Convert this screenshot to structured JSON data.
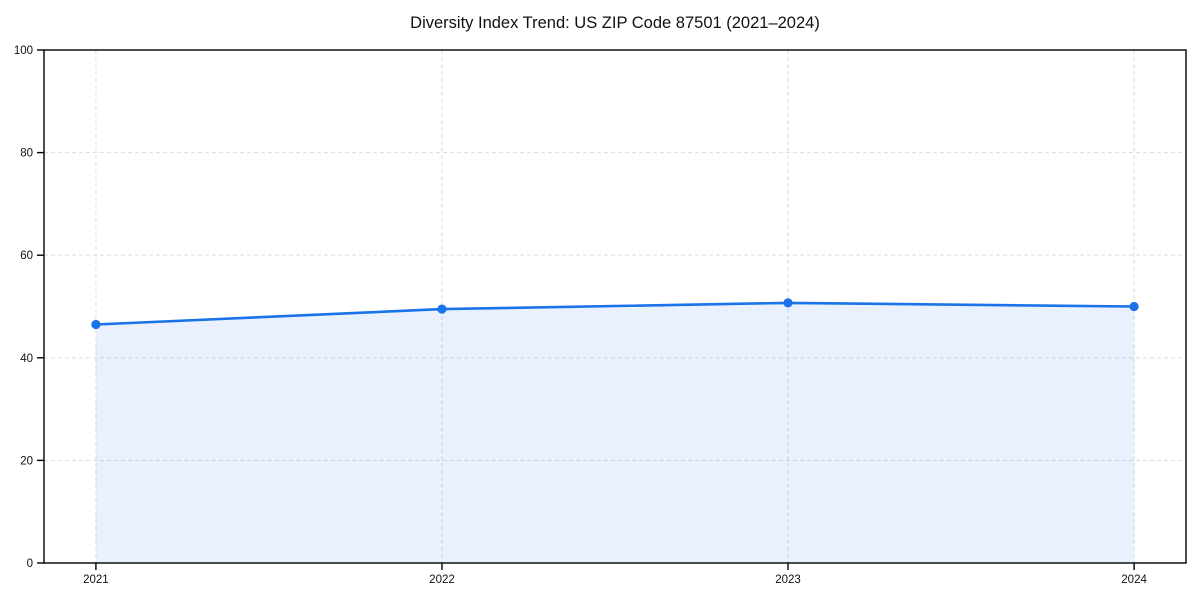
{
  "chart_data": {
    "type": "area",
    "title": "Diversity Index Trend: US ZIP Code 87501 (2021–2024)",
    "x": [
      2021,
      2022,
      2023,
      2024
    ],
    "x_tick_labels": [
      "2021",
      "2022",
      "2023",
      "2024"
    ],
    "series": [
      {
        "name": "Diversity Index",
        "values": [
          46.5,
          49.5,
          50.7,
          50.0
        ]
      }
    ],
    "xlabel": "",
    "ylabel": "",
    "xlim": [
      2020.85,
      2024.15
    ],
    "ylim": [
      0,
      100
    ],
    "y_ticks": [
      0,
      20,
      40,
      60,
      80,
      100
    ],
    "grid": "dashed both axes",
    "legend": "none",
    "colors": {
      "line": "#1a73e8",
      "marker": "#1a73e8",
      "area_fill": "rgba(26,115,232,0.10)",
      "grid": "#e0e0e0",
      "axis": "#000000",
      "text": "#111111",
      "background": "#ffffff"
    }
  }
}
